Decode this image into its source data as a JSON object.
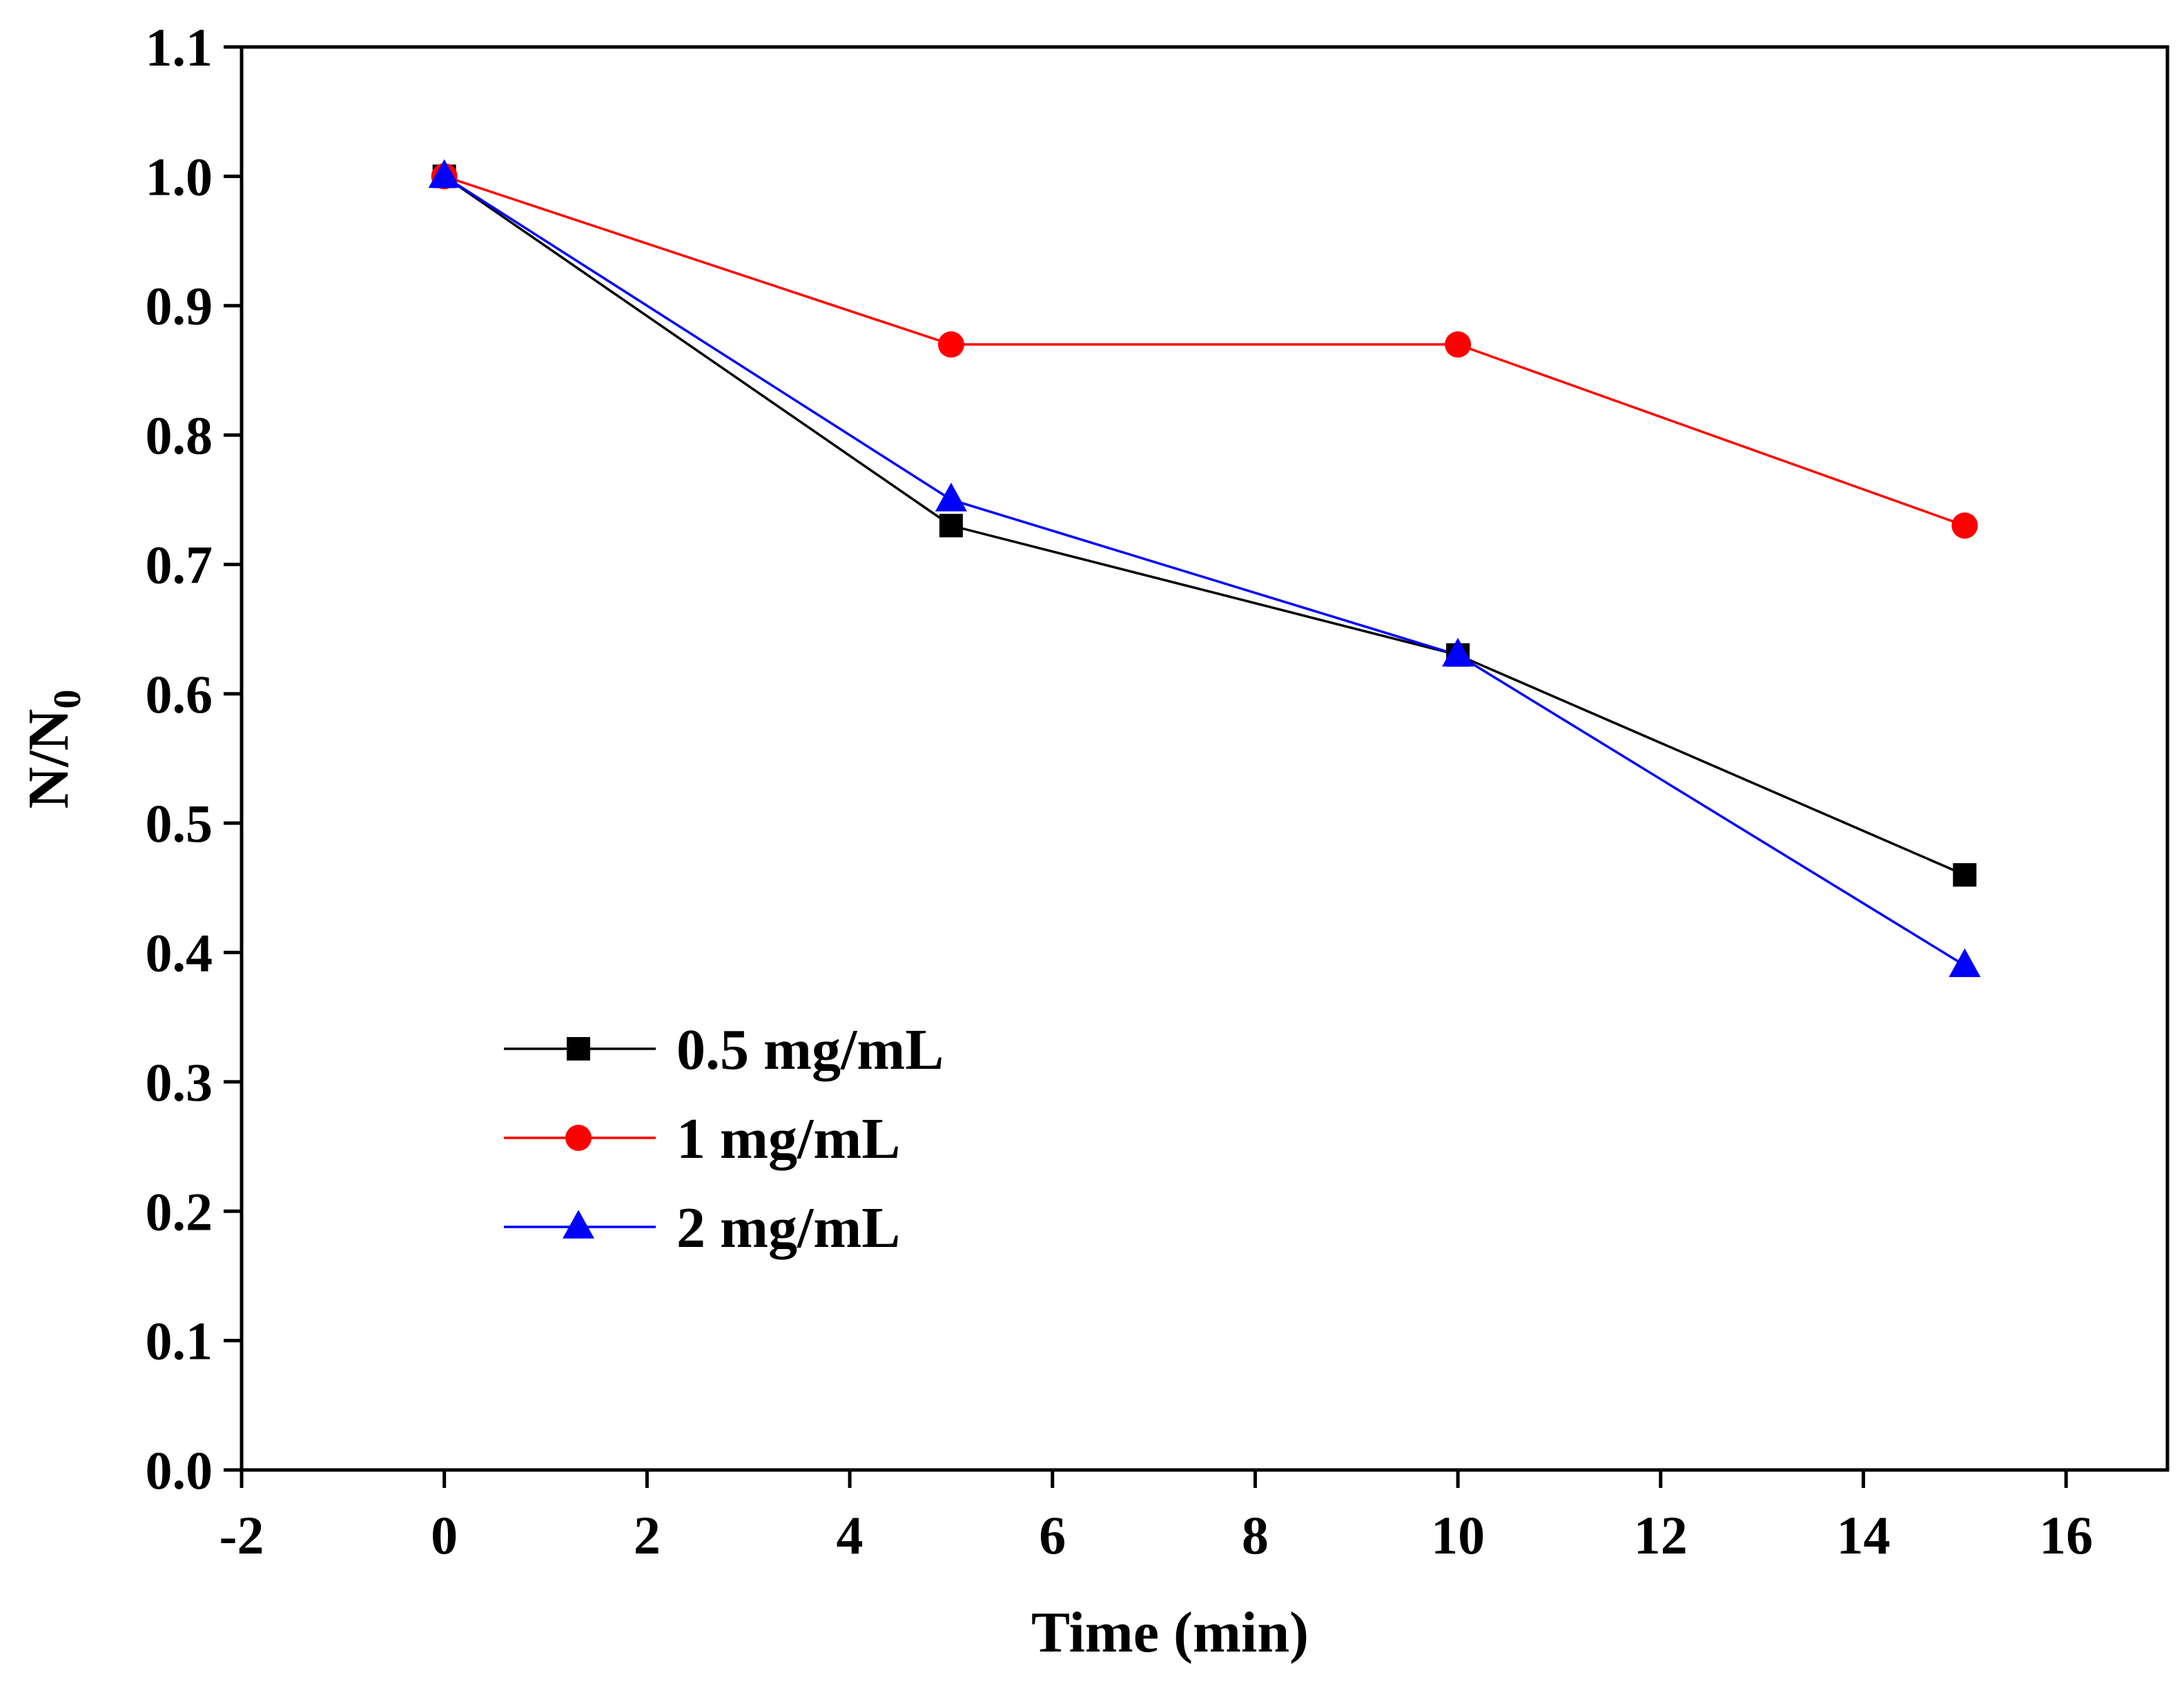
{
  "chart_data": {
    "type": "line",
    "title": "",
    "xlabel": "Time (min)",
    "ylabel_main": "N/N",
    "ylabel_sub": "0",
    "xlim": [
      -2,
      17
    ],
    "ylim": [
      0.0,
      1.1
    ],
    "x_ticks": [
      -2,
      0,
      2,
      4,
      6,
      8,
      10,
      12,
      14,
      16
    ],
    "x_tick_labels": [
      "-2",
      "0",
      "2",
      "4",
      "6",
      "8",
      "10",
      "12",
      "14",
      "16"
    ],
    "y_ticks": [
      0.0,
      0.1,
      0.2,
      0.3,
      0.4,
      0.5,
      0.6,
      0.7,
      0.8,
      0.9,
      1.0,
      1.1
    ],
    "y_tick_labels": [
      "0.0",
      "0.1",
      "0.2",
      "0.3",
      "0.4",
      "0.5",
      "0.6",
      "0.7",
      "0.8",
      "0.9",
      "1.0",
      "1.1"
    ],
    "grid": false,
    "legend_position": "lower-left",
    "x": [
      0,
      5,
      10,
      15
    ],
    "series": [
      {
        "name": "0.5 mg/mL",
        "color": "#000000",
        "marker": "square",
        "values": [
          1.0,
          0.73,
          0.63,
          0.46
        ]
      },
      {
        "name": "1 mg/mL",
        "color": "#ff0000",
        "marker": "circle",
        "values": [
          1.0,
          0.87,
          0.87,
          0.73
        ]
      },
      {
        "name": "2 mg/mL",
        "color": "#0000ff",
        "marker": "triangle",
        "values": [
          1.0,
          0.75,
          0.63,
          0.39
        ]
      }
    ]
  }
}
